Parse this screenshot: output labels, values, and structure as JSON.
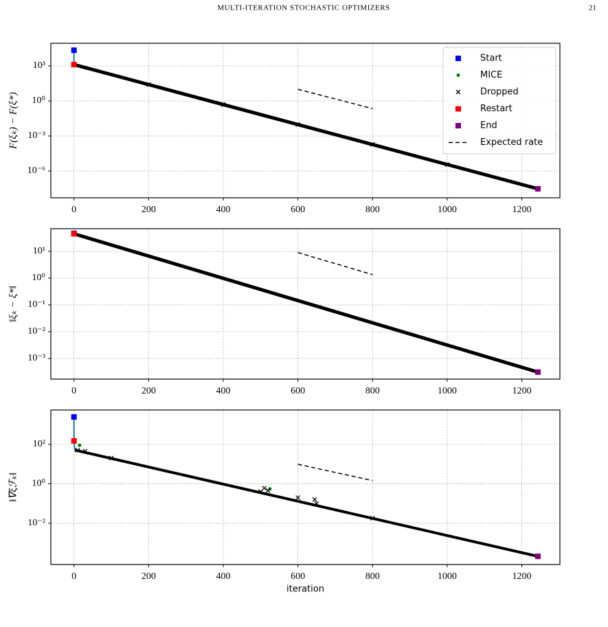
{
  "header": {
    "title": "MULTI-ITERATION STOCHASTIC OPTIMIZERS",
    "page": "21"
  },
  "chart_data": [
    {
      "type": "line",
      "y_label": "F(ξₖ) − F(ξ*)",
      "log_y": true,
      "grid": true,
      "legend": "upper right",
      "xlim": [
        -62,
        1302
      ],
      "xticks": [
        0,
        200,
        400,
        600,
        800,
        1000,
        1200
      ],
      "ylim": [
        5.1e-09,
        87000
      ],
      "yticks": [
        {
          "value": 1000,
          "label": "10³"
        },
        {
          "value": 1,
          "label": "10⁰"
        },
        {
          "value": 0.001,
          "label": "10⁻³"
        },
        {
          "value": 1e-06,
          "label": "10⁻⁶"
        }
      ],
      "series": [
        {
          "color": "#000000",
          "line": "solid",
          "width": 5,
          "x": [
            0,
            1243
          ],
          "values": [
            1300,
            3e-08
          ]
        },
        {
          "color": "#1f77b4",
          "line": "solid",
          "width": 2,
          "x": [
            0,
            0
          ],
          "values": [
            22000,
            1300
          ]
        },
        {
          "name": "Start",
          "color": "#0000ff",
          "marker": "square",
          "x": [
            0
          ],
          "values": [
            22000
          ]
        },
        {
          "name": "MICE",
          "color": "#008000",
          "marker": "dot",
          "x": [],
          "values": []
        },
        {
          "name": "Dropped",
          "color": "#000000",
          "marker": "x",
          "x": [
            200,
            400,
            600,
            800,
            1000
          ],
          "values": [
            25,
            0.49,
            0.0095,
            0.00019,
            3.6e-06
          ]
        },
        {
          "name": "Restart",
          "color": "#ff0000",
          "marker": "square",
          "x": [
            0
          ],
          "values": [
            1300
          ]
        },
        {
          "name": "End",
          "color": "#800080",
          "marker": "square",
          "x": [
            1243
          ],
          "values": [
            3e-08
          ]
        },
        {
          "name": "Expected rate",
          "color": "#000000",
          "line": "dashed",
          "width": 1.5,
          "x": [
            600,
            800
          ],
          "values": [
            10,
            0.22
          ]
        }
      ]
    },
    {
      "type": "line",
      "y_label": "‖ξₖ − ξ*‖",
      "log_y": true,
      "grid": true,
      "xlim": [
        -62,
        1302
      ],
      "xticks": [
        0,
        200,
        400,
        600,
        800,
        1000,
        1200
      ],
      "ylim": [
        0.00017,
        70
      ],
      "yticks": [
        {
          "value": 10,
          "label": "10¹"
        },
        {
          "value": 1,
          "label": "10⁰"
        },
        {
          "value": 0.1,
          "label": "10⁻¹"
        },
        {
          "value": 0.01,
          "label": "10⁻²"
        },
        {
          "value": 0.001,
          "label": "10⁻³"
        }
      ],
      "series": [
        {
          "color": "#000000",
          "line": "solid",
          "width": 5,
          "x": [
            0,
            1243
          ],
          "values": [
            45,
            0.00031
          ]
        },
        {
          "color": "#1f77b4",
          "line": "solid",
          "width": 2,
          "x": [
            0,
            0
          ],
          "values": [
            47,
            45
          ]
        },
        {
          "name": "Start",
          "color": "#0000ff",
          "marker": "square",
          "x": [
            0
          ],
          "values": [
            47
          ]
        },
        {
          "name": "Restart",
          "color": "#ff0000",
          "marker": "square",
          "x": [
            0
          ],
          "values": [
            45
          ]
        },
        {
          "name": "End",
          "color": "#800080",
          "marker": "square",
          "x": [
            1243
          ],
          "values": [
            0.00031
          ]
        },
        {
          "name": "Expected rate",
          "color": "#000000",
          "line": "dashed",
          "width": 1.5,
          "x": [
            600,
            800
          ],
          "values": [
            9,
            1.35
          ]
        }
      ]
    },
    {
      "type": "line",
      "y_label": "‖∇ξℱₖ‖",
      "x_label": "iteration",
      "log_y": true,
      "grid": true,
      "xlim": [
        -62,
        1302
      ],
      "xticks": [
        0,
        200,
        400,
        600,
        800,
        1000,
        1200
      ],
      "ylim": [
        8.1e-05,
        5500
      ],
      "yticks": [
        {
          "value": 100,
          "label": "10²"
        },
        {
          "value": 1,
          "label": "10⁰"
        },
        {
          "value": 0.01,
          "label": "10⁻²"
        }
      ],
      "series": [
        {
          "color": "#000000",
          "line": "solid",
          "width": 4,
          "x": [
            2,
            40,
            350,
            800,
            1243
          ],
          "values": [
            52,
            35,
            1.58,
            0.0176,
            0.00021
          ]
        },
        {
          "color": "#1f77b4",
          "line": "solid",
          "width": 2,
          "x": [
            0,
            0,
            2
          ],
          "values": [
            2450,
            150,
            52
          ]
        },
        {
          "name": "Start",
          "color": "#0000ff",
          "marker": "square",
          "x": [
            0
          ],
          "values": [
            2450
          ]
        },
        {
          "name": "MICE",
          "color": "#008000",
          "marker": "dot",
          "x": [
            15,
            525
          ],
          "values": [
            90,
            0.55
          ]
        },
        {
          "name": "Dropped",
          "color": "#000000",
          "marker": "x",
          "x": [
            10,
            30,
            100,
            500,
            510,
            520,
            600,
            645,
            650,
            800
          ],
          "values": [
            50,
            45,
            20,
            0.4,
            0.6,
            0.45,
            0.2,
            0.16,
            0.1,
            0.018
          ]
        },
        {
          "name": "Restart",
          "color": "#ff0000",
          "marker": "square",
          "x": [
            0
          ],
          "values": [
            150
          ]
        },
        {
          "name": "End",
          "color": "#800080",
          "marker": "square",
          "x": [
            1243
          ],
          "values": [
            0.00021
          ]
        },
        {
          "name": "Expected rate",
          "color": "#000000",
          "line": "dashed",
          "width": 1.5,
          "x": [
            600,
            800
          ],
          "values": [
            9.8,
            1.45
          ]
        }
      ]
    }
  ]
}
